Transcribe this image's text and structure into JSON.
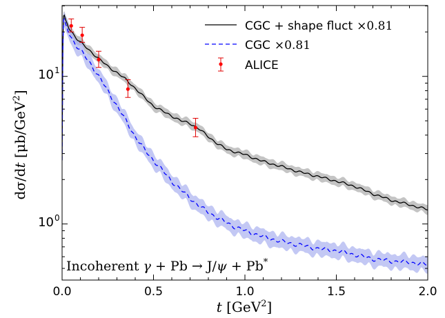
{
  "chart_data": {
    "type": "line",
    "xlabel": "t [GeV²]",
    "ylabel": "dσ/dt [μb/GeV²]",
    "xlim": [
      0.0,
      2.0
    ],
    "ylim_log10": [
      -0.38,
      1.48
    ],
    "yscale": "log",
    "xticks": [
      0.0,
      0.5,
      1.0,
      1.5,
      2.0
    ],
    "xtick_labels": [
      "0.0",
      "0.5",
      "1.0",
      "1.5",
      "2.0"
    ],
    "yticks": [
      1,
      10
    ],
    "ytick_labels": [
      "10⁰",
      "10¹"
    ],
    "annotation": "Incoherent γ + Pb → J/ψ + Pb*",
    "legend_position": "top-right",
    "series": [
      {
        "name": "CGC + shape fluct ×0.81",
        "style": "solid",
        "color": "#000000",
        "band_color": "#b0b0b0",
        "band_rel_width": 0.08,
        "x": [
          0.0,
          0.005,
          0.01,
          0.02,
          0.04,
          0.06,
          0.08,
          0.1,
          0.15,
          0.2,
          0.25,
          0.3,
          0.35,
          0.4,
          0.45,
          0.5,
          0.55,
          0.6,
          0.65,
          0.7,
          0.75,
          0.8,
          0.85,
          0.9,
          1.0,
          1.1,
          1.2,
          1.3,
          1.4,
          1.5,
          1.6,
          1.7,
          1.8,
          1.9,
          2.0
        ],
        "y": [
          2.7,
          24.5,
          26.5,
          24.0,
          21.0,
          19.5,
          18.0,
          17.0,
          15.0,
          13.2,
          11.7,
          10.6,
          9.5,
          8.3,
          7.2,
          6.3,
          5.8,
          5.4,
          5.0,
          4.8,
          4.4,
          3.9,
          3.5,
          3.2,
          2.95,
          2.65,
          2.45,
          2.25,
          2.1,
          1.95,
          1.8,
          1.6,
          1.45,
          1.35,
          1.25
        ]
      },
      {
        "name": "CGC ×0.81",
        "style": "dashed",
        "color": "#0000ff",
        "band_color": "#aab0f0",
        "band_rel_width": 0.14,
        "x": [
          0.0,
          0.005,
          0.01,
          0.02,
          0.04,
          0.06,
          0.08,
          0.1,
          0.15,
          0.2,
          0.25,
          0.3,
          0.35,
          0.4,
          0.45,
          0.5,
          0.55,
          0.6,
          0.65,
          0.7,
          0.75,
          0.8,
          0.85,
          0.9,
          0.95,
          1.0,
          1.1,
          1.2,
          1.3,
          1.4,
          1.5,
          1.6,
          1.7,
          1.8,
          1.9,
          2.0
        ],
        "y": [
          2.7,
          23.0,
          25.0,
          22.5,
          19.5,
          17.5,
          16.0,
          15.0,
          12.5,
          10.0,
          8.0,
          6.3,
          5.0,
          3.9,
          3.2,
          2.7,
          2.3,
          1.95,
          1.7,
          1.5,
          1.32,
          1.2,
          1.1,
          1.02,
          0.95,
          0.9,
          0.82,
          0.76,
          0.72,
          0.68,
          0.66,
          0.62,
          0.58,
          0.56,
          0.55,
          0.53
        ]
      }
    ],
    "points": {
      "name": "ALICE",
      "color": "#ff0000",
      "x": [
        0.05,
        0.11,
        0.2,
        0.36,
        0.73
      ],
      "y": [
        22.0,
        19.0,
        13.0,
        8.2,
        4.5
      ],
      "yerr_low": [
        2.0,
        2.0,
        1.5,
        1.0,
        0.6
      ],
      "yerr_high": [
        2.5,
        2.5,
        1.8,
        1.3,
        0.7
      ]
    }
  },
  "legend": {
    "item1_text": "CGC + shape fluct",
    "item1_factor": "×0.81",
    "item2_text": "CGC",
    "item2_factor": "×0.81",
    "item3_text": "ALICE"
  }
}
